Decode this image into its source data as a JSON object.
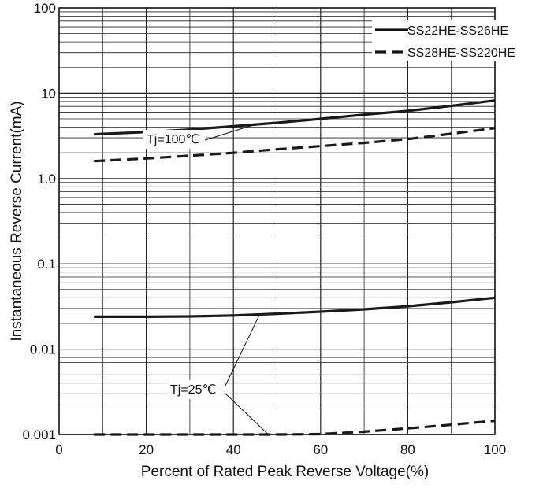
{
  "chart_data": {
    "type": "line",
    "title": "",
    "xlabel": "Percent of Rated Peak Reverse Voltage(%)",
    "ylabel": "Instantaneous Reverse Current(mA)",
    "xlim": [
      0,
      100
    ],
    "ylim": [
      0.001,
      100
    ],
    "yscale": "log",
    "grid": true,
    "x_ticks": [
      0,
      20,
      40,
      60,
      80,
      100
    ],
    "x_tick_labels": [
      "0",
      "20",
      "40",
      "60",
      "80",
      "100"
    ],
    "y_ticks": [
      0.001,
      0.01,
      0.1,
      1,
      10,
      100
    ],
    "y_tick_labels": [
      "0.001",
      "0.01",
      "0.1",
      "1.0",
      "10",
      "100"
    ],
    "legend_position": "top-right",
    "series": [
      {
        "name": "SS22HE-SS26HE",
        "style": "solid",
        "color": "#1a1a1a",
        "condition": "Tj=100℃",
        "x": [
          8,
          20,
          30,
          40,
          50,
          60,
          70,
          80,
          90,
          100
        ],
        "y": [
          3.3,
          3.5,
          3.75,
          4.1,
          4.5,
          5.0,
          5.6,
          6.2,
          7.1,
          8.2
        ]
      },
      {
        "name": "SS28HE-SS220HE",
        "style": "dashed",
        "color": "#1a1a1a",
        "condition": "Tj=100℃",
        "x": [
          8,
          20,
          30,
          40,
          50,
          60,
          70,
          80,
          90,
          100
        ],
        "y": [
          1.6,
          1.72,
          1.85,
          2.0,
          2.2,
          2.4,
          2.62,
          2.9,
          3.35,
          3.9
        ]
      },
      {
        "name": "SS22HE-SS26HE",
        "style": "solid",
        "color": "#1a1a1a",
        "condition": "Tj=25℃",
        "x": [
          8,
          20,
          30,
          40,
          50,
          60,
          70,
          80,
          90,
          100
        ],
        "y": [
          0.024,
          0.024,
          0.0242,
          0.0248,
          0.026,
          0.0275,
          0.0293,
          0.0318,
          0.0355,
          0.04
        ]
      },
      {
        "name": "SS28HE-SS220HE",
        "style": "dashed",
        "color": "#1a1a1a",
        "condition": "Tj=25℃",
        "x": [
          8,
          20,
          30,
          40,
          50,
          60,
          70,
          80,
          90,
          100
        ],
        "y": [
          0.001,
          0.001,
          0.001,
          0.001,
          0.001,
          0.00101,
          0.00108,
          0.00118,
          0.0013,
          0.00145
        ]
      }
    ],
    "annotations": [
      {
        "text": "Tj=100℃",
        "points_to": [
          {
            "x": 45,
            "y": 4.3
          }
        ]
      },
      {
        "text": "Tj=25℃",
        "points_to": [
          {
            "x": 46,
            "y": 0.0255
          },
          {
            "x": 48,
            "y": 0.001
          }
        ]
      }
    ],
    "legend": [
      {
        "label": "SS22HE-SS26HE",
        "style": "solid"
      },
      {
        "label": "SS28HE-SS220HE",
        "style": "dashed"
      }
    ]
  }
}
